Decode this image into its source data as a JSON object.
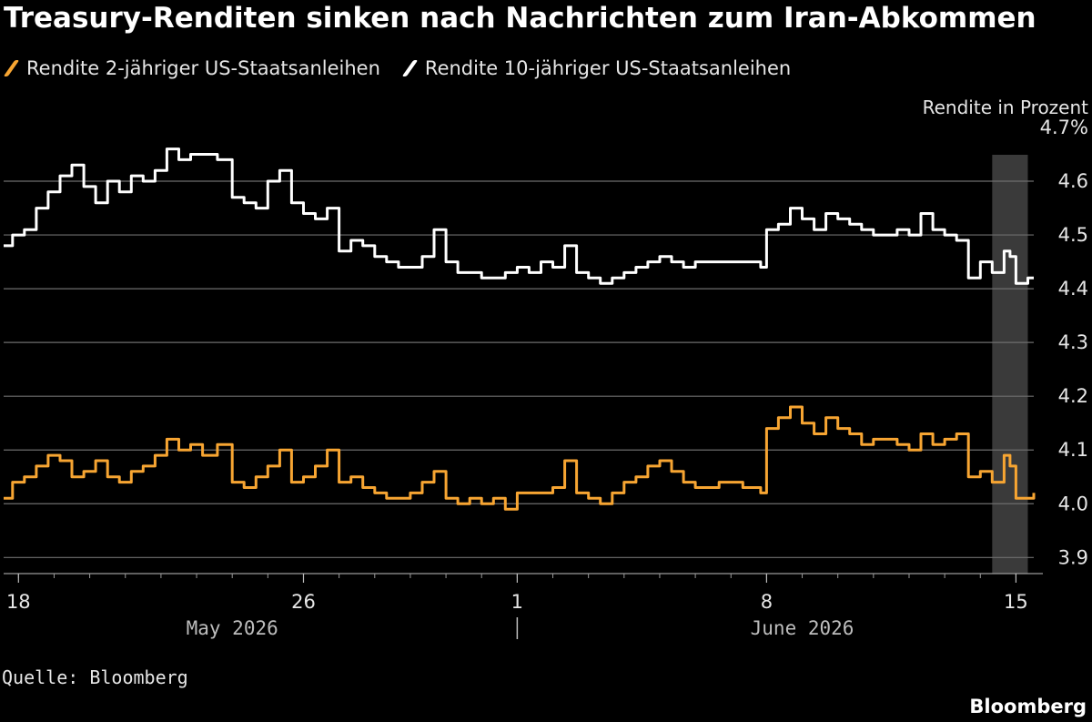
{
  "title": "Treasury-Renditen sinken nach Nachrichten zum Iran-Abkommen",
  "legend": [
    {
      "label": "Rendite 2-jähriger US-Staatsanleihen",
      "color": "#f7a532"
    },
    {
      "label": "Rendite 10-jähriger US-Staatsanleihen",
      "color": "#ffffff"
    }
  ],
  "source": "Quelle: Bloomberg",
  "brand": "Bloomberg",
  "chart_data": {
    "type": "line",
    "title": "Treasury-Renditen sinken nach Nachrichten zum Iran-Abkommen",
    "ylabel": "Rendite in Prozent",
    "ylim": [
      3.87,
      4.7
    ],
    "y_ticks": [
      "4.7%",
      "4.6",
      "4.5",
      "4.4",
      "4.3",
      "4.2",
      "4.1",
      "4.0",
      "3.9"
    ],
    "y_tick_values": [
      4.7,
      4.6,
      4.5,
      4.4,
      4.3,
      4.2,
      4.1,
      4.0,
      3.9
    ],
    "x_range": [
      "2026-05-17T14:00",
      "2026-06-15T12:00"
    ],
    "x_ticks": [
      {
        "label": "18",
        "date": "2026-05-18"
      },
      {
        "label": "26",
        "date": "2026-05-26"
      },
      {
        "label": "1",
        "date": "2026-06-01"
      },
      {
        "label": "8",
        "date": "2026-06-08"
      },
      {
        "label": "15",
        "date": "2026-06-15"
      }
    ],
    "month_labels": [
      {
        "label": "May 2026",
        "date": "2026-05-24"
      },
      {
        "label": "June 2026",
        "date": "2026-06-09"
      }
    ],
    "month_separator_date": "2026-06-01",
    "highlight": {
      "start": "2026-06-14T08:00",
      "end": "2026-06-15T08:00"
    },
    "grid": true,
    "legend_position": "top-left",
    "series": [
      {
        "name": "Rendite 10-jähriger US-Staatsanleihen",
        "color": "#ffffff",
        "points": [
          [
            "2026-05-17T14:00",
            4.48
          ],
          [
            "2026-05-17T20:00",
            4.5
          ],
          [
            "2026-05-18T04:00",
            4.51
          ],
          [
            "2026-05-18T12:00",
            4.55
          ],
          [
            "2026-05-18T20:00",
            4.58
          ],
          [
            "2026-05-19T04:00",
            4.61
          ],
          [
            "2026-05-19T12:00",
            4.63
          ],
          [
            "2026-05-19T20:00",
            4.59
          ],
          [
            "2026-05-20T04:00",
            4.56
          ],
          [
            "2026-05-20T12:00",
            4.6
          ],
          [
            "2026-05-20T20:00",
            4.58
          ],
          [
            "2026-05-21T04:00",
            4.61
          ],
          [
            "2026-05-21T12:00",
            4.6
          ],
          [
            "2026-05-21T20:00",
            4.62
          ],
          [
            "2026-05-22T04:00",
            4.66
          ],
          [
            "2026-05-22T12:00",
            4.64
          ],
          [
            "2026-05-22T20:00",
            4.65
          ],
          [
            "2026-05-23T04:00",
            4.65
          ],
          [
            "2026-05-23T14:00",
            4.64
          ],
          [
            "2026-05-24T00:00",
            4.57
          ],
          [
            "2026-05-24T08:00",
            4.56
          ],
          [
            "2026-05-24T16:00",
            4.55
          ],
          [
            "2026-05-25T00:00",
            4.6
          ],
          [
            "2026-05-25T08:00",
            4.62
          ],
          [
            "2026-05-25T16:00",
            4.56
          ],
          [
            "2026-05-26T00:00",
            4.54
          ],
          [
            "2026-05-26T08:00",
            4.53
          ],
          [
            "2026-05-26T16:00",
            4.55
          ],
          [
            "2026-05-27T00:00",
            4.47
          ],
          [
            "2026-05-27T08:00",
            4.49
          ],
          [
            "2026-05-27T16:00",
            4.48
          ],
          [
            "2026-05-28T00:00",
            4.46
          ],
          [
            "2026-05-28T08:00",
            4.45
          ],
          [
            "2026-05-28T16:00",
            4.44
          ],
          [
            "2026-05-29T00:00",
            4.44
          ],
          [
            "2026-05-29T08:00",
            4.46
          ],
          [
            "2026-05-29T16:00",
            4.51
          ],
          [
            "2026-05-30T00:00",
            4.45
          ],
          [
            "2026-05-30T08:00",
            4.43
          ],
          [
            "2026-05-30T16:00",
            4.43
          ],
          [
            "2026-05-31T00:00",
            4.42
          ],
          [
            "2026-05-31T08:00",
            4.42
          ],
          [
            "2026-05-31T16:00",
            4.43
          ],
          [
            "2026-06-01T00:00",
            4.44
          ],
          [
            "2026-06-01T08:00",
            4.43
          ],
          [
            "2026-06-01T16:00",
            4.45
          ],
          [
            "2026-06-02T00:00",
            4.44
          ],
          [
            "2026-06-02T08:00",
            4.48
          ],
          [
            "2026-06-02T16:00",
            4.43
          ],
          [
            "2026-06-03T00:00",
            4.42
          ],
          [
            "2026-06-03T08:00",
            4.41
          ],
          [
            "2026-06-03T16:00",
            4.42
          ],
          [
            "2026-06-04T00:00",
            4.43
          ],
          [
            "2026-06-04T08:00",
            4.44
          ],
          [
            "2026-06-04T16:00",
            4.45
          ],
          [
            "2026-06-05T00:00",
            4.46
          ],
          [
            "2026-06-05T08:00",
            4.45
          ],
          [
            "2026-06-05T16:00",
            4.44
          ],
          [
            "2026-06-06T00:00",
            4.45
          ],
          [
            "2026-06-06T16:00",
            4.45
          ],
          [
            "2026-06-07T08:00",
            4.45
          ],
          [
            "2026-06-07T20:00",
            4.44
          ],
          [
            "2026-06-08T00:00",
            4.51
          ],
          [
            "2026-06-08T08:00",
            4.52
          ],
          [
            "2026-06-08T16:00",
            4.55
          ],
          [
            "2026-06-09T00:00",
            4.53
          ],
          [
            "2026-06-09T08:00",
            4.51
          ],
          [
            "2026-06-09T16:00",
            4.54
          ],
          [
            "2026-06-10T00:00",
            4.53
          ],
          [
            "2026-06-10T08:00",
            4.52
          ],
          [
            "2026-06-10T16:00",
            4.51
          ],
          [
            "2026-06-11T00:00",
            4.5
          ],
          [
            "2026-06-11T08:00",
            4.5
          ],
          [
            "2026-06-11T16:00",
            4.51
          ],
          [
            "2026-06-12T00:00",
            4.5
          ],
          [
            "2026-06-12T08:00",
            4.54
          ],
          [
            "2026-06-12T16:00",
            4.51
          ],
          [
            "2026-06-13T00:00",
            4.5
          ],
          [
            "2026-06-13T08:00",
            4.49
          ],
          [
            "2026-06-13T16:00",
            4.42
          ],
          [
            "2026-06-14T00:00",
            4.45
          ],
          [
            "2026-06-14T08:00",
            4.43
          ],
          [
            "2026-06-14T16:00",
            4.47
          ],
          [
            "2026-06-14T20:00",
            4.46
          ],
          [
            "2026-06-15T00:00",
            4.41
          ],
          [
            "2026-06-15T08:00",
            4.42
          ],
          [
            "2026-06-15T12:00",
            4.42
          ]
        ]
      },
      {
        "name": "Rendite 2-jähriger US-Staatsanleihen",
        "color": "#f7a532",
        "points": [
          [
            "2026-05-17T14:00",
            4.01
          ],
          [
            "2026-05-17T20:00",
            4.04
          ],
          [
            "2026-05-18T04:00",
            4.05
          ],
          [
            "2026-05-18T12:00",
            4.07
          ],
          [
            "2026-05-18T20:00",
            4.09
          ],
          [
            "2026-05-19T04:00",
            4.08
          ],
          [
            "2026-05-19T12:00",
            4.05
          ],
          [
            "2026-05-19T20:00",
            4.06
          ],
          [
            "2026-05-20T04:00",
            4.08
          ],
          [
            "2026-05-20T12:00",
            4.05
          ],
          [
            "2026-05-20T20:00",
            4.04
          ],
          [
            "2026-05-21T04:00",
            4.06
          ],
          [
            "2026-05-21T12:00",
            4.07
          ],
          [
            "2026-05-21T20:00",
            4.09
          ],
          [
            "2026-05-22T04:00",
            4.12
          ],
          [
            "2026-05-22T12:00",
            4.1
          ],
          [
            "2026-05-22T20:00",
            4.11
          ],
          [
            "2026-05-23T04:00",
            4.09
          ],
          [
            "2026-05-23T14:00",
            4.11
          ],
          [
            "2026-05-24T00:00",
            4.04
          ],
          [
            "2026-05-24T08:00",
            4.03
          ],
          [
            "2026-05-24T16:00",
            4.05
          ],
          [
            "2026-05-25T00:00",
            4.07
          ],
          [
            "2026-05-25T08:00",
            4.1
          ],
          [
            "2026-05-25T16:00",
            4.04
          ],
          [
            "2026-05-26T00:00",
            4.05
          ],
          [
            "2026-05-26T08:00",
            4.07
          ],
          [
            "2026-05-26T16:00",
            4.1
          ],
          [
            "2026-05-27T00:00",
            4.04
          ],
          [
            "2026-05-27T08:00",
            4.05
          ],
          [
            "2026-05-27T16:00",
            4.03
          ],
          [
            "2026-05-28T00:00",
            4.02
          ],
          [
            "2026-05-28T08:00",
            4.01
          ],
          [
            "2026-05-28T16:00",
            4.01
          ],
          [
            "2026-05-29T00:00",
            4.02
          ],
          [
            "2026-05-29T08:00",
            4.04
          ],
          [
            "2026-05-29T16:00",
            4.06
          ],
          [
            "2026-05-30T00:00",
            4.01
          ],
          [
            "2026-05-30T08:00",
            4.0
          ],
          [
            "2026-05-30T16:00",
            4.01
          ],
          [
            "2026-05-31T00:00",
            4.0
          ],
          [
            "2026-05-31T08:00",
            4.01
          ],
          [
            "2026-05-31T16:00",
            3.99
          ],
          [
            "2026-06-01T00:00",
            4.02
          ],
          [
            "2026-06-01T08:00",
            4.02
          ],
          [
            "2026-06-01T16:00",
            4.02
          ],
          [
            "2026-06-02T00:00",
            4.03
          ],
          [
            "2026-06-02T08:00",
            4.08
          ],
          [
            "2026-06-02T16:00",
            4.02
          ],
          [
            "2026-06-03T00:00",
            4.01
          ],
          [
            "2026-06-03T08:00",
            4.0
          ],
          [
            "2026-06-03T16:00",
            4.02
          ],
          [
            "2026-06-04T00:00",
            4.04
          ],
          [
            "2026-06-04T08:00",
            4.05
          ],
          [
            "2026-06-04T16:00",
            4.07
          ],
          [
            "2026-06-05T00:00",
            4.08
          ],
          [
            "2026-06-05T08:00",
            4.06
          ],
          [
            "2026-06-05T16:00",
            4.04
          ],
          [
            "2026-06-06T00:00",
            4.03
          ],
          [
            "2026-06-06T16:00",
            4.04
          ],
          [
            "2026-06-07T08:00",
            4.03
          ],
          [
            "2026-06-07T20:00",
            4.02
          ],
          [
            "2026-06-08T00:00",
            4.14
          ],
          [
            "2026-06-08T08:00",
            4.16
          ],
          [
            "2026-06-08T16:00",
            4.18
          ],
          [
            "2026-06-09T00:00",
            4.15
          ],
          [
            "2026-06-09T08:00",
            4.13
          ],
          [
            "2026-06-09T16:00",
            4.16
          ],
          [
            "2026-06-10T00:00",
            4.14
          ],
          [
            "2026-06-10T08:00",
            4.13
          ],
          [
            "2026-06-10T16:00",
            4.11
          ],
          [
            "2026-06-11T00:00",
            4.12
          ],
          [
            "2026-06-11T08:00",
            4.12
          ],
          [
            "2026-06-11T16:00",
            4.11
          ],
          [
            "2026-06-12T00:00",
            4.1
          ],
          [
            "2026-06-12T08:00",
            4.13
          ],
          [
            "2026-06-12T16:00",
            4.11
          ],
          [
            "2026-06-13T00:00",
            4.12
          ],
          [
            "2026-06-13T08:00",
            4.13
          ],
          [
            "2026-06-13T16:00",
            4.05
          ],
          [
            "2026-06-14T00:00",
            4.06
          ],
          [
            "2026-06-14T08:00",
            4.04
          ],
          [
            "2026-06-14T16:00",
            4.09
          ],
          [
            "2026-06-14T20:00",
            4.07
          ],
          [
            "2026-06-15T00:00",
            4.01
          ],
          [
            "2026-06-15T08:00",
            4.01
          ],
          [
            "2026-06-15T12:00",
            4.02
          ]
        ]
      }
    ]
  }
}
